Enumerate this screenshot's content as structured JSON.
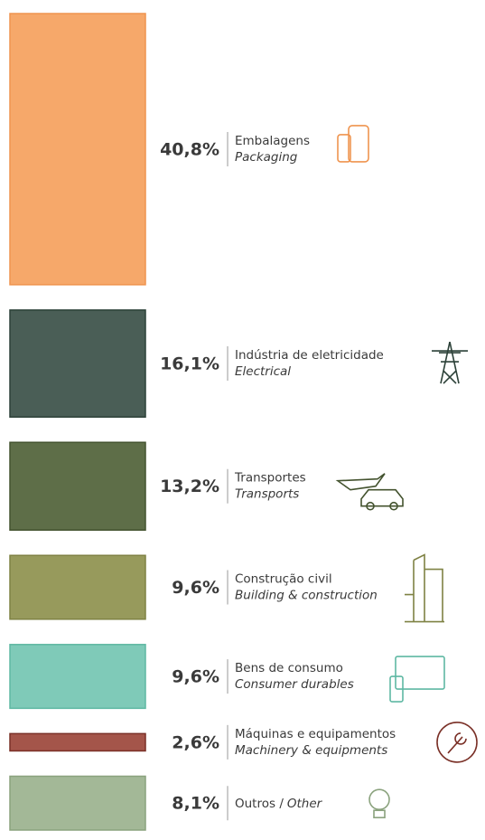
{
  "chart_data": {
    "type": "bar",
    "categories": [
      "Embalagens",
      "Indústria de eletricidade",
      "Transportes",
      "Construção civil",
      "Bens de consumo",
      "Máquinas e equipamentos",
      "Outros /"
    ],
    "categories_en": [
      "Packaging",
      "Electrical",
      "Transports",
      "Building & construction",
      "Consumer durables",
      "Machinery & equipments",
      "Other"
    ],
    "values": [
      40.8,
      16.1,
      13.2,
      9.6,
      9.6,
      2.6,
      8.1
    ],
    "value_labels": [
      "40,8%",
      "16,1%",
      "13,2%",
      "9,6%",
      "9,6%",
      "2,6%",
      "8,1%"
    ],
    "colors": [
      "#f6a86a",
      "#4a5e56",
      "#5e6e48",
      "#979a5c",
      "#7fcab8",
      "#a4554a",
      "#a3b897"
    ]
  }
}
